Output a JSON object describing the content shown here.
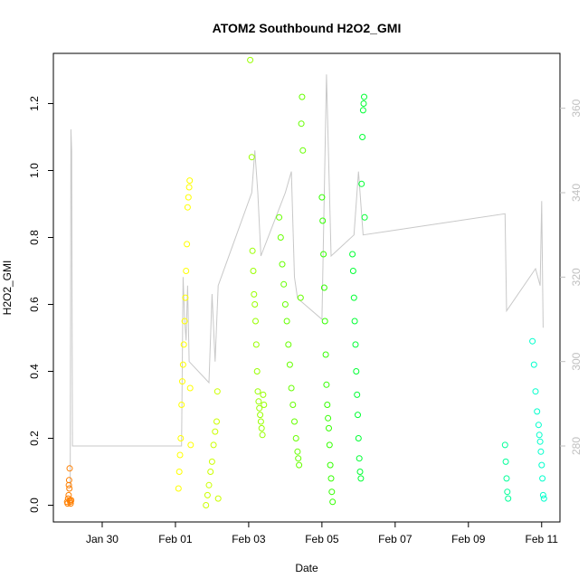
{
  "chart_data": {
    "type": "scatter",
    "title": "ATOM2 Southbound H2O2_GMI",
    "xlabel": "Date",
    "ylabel": "H2O2_GMI",
    "xlim": [
      "2017-01-28T16:00",
      "2017-02-11T12:00"
    ],
    "ylim": [
      -0.05,
      1.35
    ],
    "y2lim": [
      262,
      373
    ],
    "x_ticks": [
      {
        "date": "2017-01-30",
        "label": "Jan 30"
      },
      {
        "date": "2017-02-01",
        "label": "Feb 01"
      },
      {
        "date": "2017-02-03",
        "label": "Feb 03"
      },
      {
        "date": "2017-02-05",
        "label": "Feb 05"
      },
      {
        "date": "2017-02-07",
        "label": "Feb 07"
      },
      {
        "date": "2017-02-09",
        "label": "Feb 09"
      },
      {
        "date": "2017-02-11",
        "label": "Feb 11"
      }
    ],
    "y_ticks": [
      0.0,
      0.2,
      0.4,
      0.6,
      0.8,
      1.0,
      1.2
    ],
    "y2_ticks": [
      280,
      300,
      320,
      340,
      360
    ],
    "grid": false,
    "legend": "none",
    "point_style": "open-circle",
    "series": [
      {
        "color": "#ff7f00",
        "points": [
          {
            "x": "2017-01-29T01:00",
            "y": 0.01
          },
          {
            "x": "2017-01-29T01:20",
            "y": 0.005
          },
          {
            "x": "2017-01-29T01:40",
            "y": 0.02
          },
          {
            "x": "2017-01-29T02:00",
            "y": 0.03
          },
          {
            "x": "2017-01-29T02:10",
            "y": 0.06
          },
          {
            "x": "2017-01-29T02:20",
            "y": 0.075
          },
          {
            "x": "2017-01-29T02:30",
            "y": 0.05
          },
          {
            "x": "2017-01-29T02:40",
            "y": 0.11
          },
          {
            "x": "2017-01-29T02:50",
            "y": 0.015
          },
          {
            "x": "2017-01-29T03:00",
            "y": 0.01
          },
          {
            "x": "2017-01-29T03:20",
            "y": 0.005
          },
          {
            "x": "2017-01-29T03:40",
            "y": 0.015
          }
        ]
      },
      {
        "color": "#ffff00",
        "points": [
          {
            "x": "2017-02-01T02:00",
            "y": 0.05
          },
          {
            "x": "2017-02-01T02:30",
            "y": 0.1
          },
          {
            "x": "2017-02-01T03:00",
            "y": 0.15
          },
          {
            "x": "2017-02-01T03:30",
            "y": 0.2
          },
          {
            "x": "2017-02-01T04:00",
            "y": 0.3
          },
          {
            "x": "2017-02-01T04:30",
            "y": 0.37
          },
          {
            "x": "2017-02-01T05:00",
            "y": 0.42
          },
          {
            "x": "2017-02-01T05:30",
            "y": 0.48
          },
          {
            "x": "2017-02-01T06:00",
            "y": 0.55
          },
          {
            "x": "2017-02-01T06:30",
            "y": 0.62
          },
          {
            "x": "2017-02-01T07:00",
            "y": 0.7
          },
          {
            "x": "2017-02-01T07:30",
            "y": 0.78
          },
          {
            "x": "2017-02-01T08:00",
            "y": 0.89
          },
          {
            "x": "2017-02-01T08:30",
            "y": 0.92
          },
          {
            "x": "2017-02-01T09:00",
            "y": 0.95
          },
          {
            "x": "2017-02-01T09:20",
            "y": 0.97
          },
          {
            "x": "2017-02-01T09:40",
            "y": 0.35
          },
          {
            "x": "2017-02-01T10:00",
            "y": 0.18
          }
        ]
      },
      {
        "color": "#ccff00",
        "points": [
          {
            "x": "2017-02-01T20:00",
            "y": 0.0
          },
          {
            "x": "2017-02-01T21:00",
            "y": 0.03
          },
          {
            "x": "2017-02-01T22:00",
            "y": 0.06
          },
          {
            "x": "2017-02-01T23:00",
            "y": 0.1
          },
          {
            "x": "2017-02-02T00:00",
            "y": 0.13
          },
          {
            "x": "2017-02-02T01:00",
            "y": 0.18
          },
          {
            "x": "2017-02-02T02:00",
            "y": 0.22
          },
          {
            "x": "2017-02-02T03:00",
            "y": 0.25
          },
          {
            "x": "2017-02-02T03:30",
            "y": 0.34
          },
          {
            "x": "2017-02-02T04:00",
            "y": 0.02
          }
        ]
      },
      {
        "color": "#99ff00",
        "points": [
          {
            "x": "2017-02-03T01:00",
            "y": 1.33
          },
          {
            "x": "2017-02-03T02:00",
            "y": 1.04
          },
          {
            "x": "2017-02-03T02:30",
            "y": 0.76
          },
          {
            "x": "2017-02-03T03:00",
            "y": 0.7
          },
          {
            "x": "2017-02-03T03:30",
            "y": 0.63
          },
          {
            "x": "2017-02-03T04:00",
            "y": 0.6
          },
          {
            "x": "2017-02-03T04:30",
            "y": 0.55
          },
          {
            "x": "2017-02-03T05:00",
            "y": 0.48
          },
          {
            "x": "2017-02-03T05:30",
            "y": 0.4
          },
          {
            "x": "2017-02-03T06:00",
            "y": 0.34
          },
          {
            "x": "2017-02-03T06:30",
            "y": 0.31
          },
          {
            "x": "2017-02-03T07:00",
            "y": 0.29
          },
          {
            "x": "2017-02-03T07:30",
            "y": 0.27
          },
          {
            "x": "2017-02-03T08:00",
            "y": 0.25
          },
          {
            "x": "2017-02-03T08:30",
            "y": 0.23
          },
          {
            "x": "2017-02-03T09:00",
            "y": 0.21
          },
          {
            "x": "2017-02-03T09:30",
            "y": 0.33
          },
          {
            "x": "2017-02-03T10:00",
            "y": 0.3
          }
        ]
      },
      {
        "color": "#66ff00",
        "points": [
          {
            "x": "2017-02-03T20:00",
            "y": 0.86
          },
          {
            "x": "2017-02-03T21:00",
            "y": 0.8
          },
          {
            "x": "2017-02-03T22:00",
            "y": 0.72
          },
          {
            "x": "2017-02-03T23:00",
            "y": 0.66
          },
          {
            "x": "2017-02-04T00:00",
            "y": 0.6
          },
          {
            "x": "2017-02-04T01:00",
            "y": 0.55
          },
          {
            "x": "2017-02-04T02:00",
            "y": 0.48
          },
          {
            "x": "2017-02-04T03:00",
            "y": 0.42
          },
          {
            "x": "2017-02-04T04:00",
            "y": 0.35
          },
          {
            "x": "2017-02-04T05:00",
            "y": 0.3
          },
          {
            "x": "2017-02-04T06:00",
            "y": 0.25
          },
          {
            "x": "2017-02-04T07:00",
            "y": 0.2
          },
          {
            "x": "2017-02-04T08:00",
            "y": 0.16
          },
          {
            "x": "2017-02-04T08:30",
            "y": 0.14
          },
          {
            "x": "2017-02-04T09:00",
            "y": 0.12
          },
          {
            "x": "2017-02-04T10:00",
            "y": 0.62
          },
          {
            "x": "2017-02-04T10:30",
            "y": 1.14
          },
          {
            "x": "2017-02-04T11:00",
            "y": 1.22
          },
          {
            "x": "2017-02-04T11:30",
            "y": 1.06
          }
        ]
      },
      {
        "color": "#33ff00",
        "points": [
          {
            "x": "2017-02-05T00:00",
            "y": 0.92
          },
          {
            "x": "2017-02-05T00:30",
            "y": 0.85
          },
          {
            "x": "2017-02-05T01:00",
            "y": 0.75
          },
          {
            "x": "2017-02-05T01:30",
            "y": 0.65
          },
          {
            "x": "2017-02-05T02:00",
            "y": 0.55
          },
          {
            "x": "2017-02-05T02:30",
            "y": 0.45
          },
          {
            "x": "2017-02-05T03:00",
            "y": 0.36
          },
          {
            "x": "2017-02-05T03:30",
            "y": 0.3
          },
          {
            "x": "2017-02-05T04:00",
            "y": 0.26
          },
          {
            "x": "2017-02-05T04:30",
            "y": 0.23
          },
          {
            "x": "2017-02-05T05:00",
            "y": 0.18
          },
          {
            "x": "2017-02-05T05:30",
            "y": 0.12
          },
          {
            "x": "2017-02-05T06:00",
            "y": 0.08
          },
          {
            "x": "2017-02-05T06:30",
            "y": 0.04
          },
          {
            "x": "2017-02-05T07:00",
            "y": 0.01
          }
        ]
      },
      {
        "color": "#00ff33",
        "points": [
          {
            "x": "2017-02-05T20:00",
            "y": 0.75
          },
          {
            "x": "2017-02-05T20:30",
            "y": 0.7
          },
          {
            "x": "2017-02-05T21:00",
            "y": 0.62
          },
          {
            "x": "2017-02-05T21:30",
            "y": 0.55
          },
          {
            "x": "2017-02-05T22:00",
            "y": 0.48
          },
          {
            "x": "2017-02-05T22:30",
            "y": 0.4
          },
          {
            "x": "2017-02-05T23:00",
            "y": 0.33
          },
          {
            "x": "2017-02-05T23:30",
            "y": 0.27
          },
          {
            "x": "2017-02-06T00:00",
            "y": 0.2
          },
          {
            "x": "2017-02-06T00:30",
            "y": 0.14
          },
          {
            "x": "2017-02-06T01:00",
            "y": 0.1
          },
          {
            "x": "2017-02-06T01:30",
            "y": 0.08
          },
          {
            "x": "2017-02-06T02:00",
            "y": 0.96
          },
          {
            "x": "2017-02-06T02:30",
            "y": 1.1
          },
          {
            "x": "2017-02-06T03:00",
            "y": 1.18
          },
          {
            "x": "2017-02-06T03:20",
            "y": 1.2
          },
          {
            "x": "2017-02-06T03:40",
            "y": 1.22
          },
          {
            "x": "2017-02-06T04:00",
            "y": 0.86
          }
        ]
      },
      {
        "color": "#00ff99",
        "points": [
          {
            "x": "2017-02-10T00:00",
            "y": 0.18
          },
          {
            "x": "2017-02-10T00:30",
            "y": 0.13
          },
          {
            "x": "2017-02-10T01:00",
            "y": 0.08
          },
          {
            "x": "2017-02-10T01:30",
            "y": 0.04
          },
          {
            "x": "2017-02-10T02:00",
            "y": 0.02
          }
        ]
      },
      {
        "color": "#00ffcc",
        "points": [
          {
            "x": "2017-02-10T18:00",
            "y": 0.49
          },
          {
            "x": "2017-02-10T19:00",
            "y": 0.42
          },
          {
            "x": "2017-02-10T20:00",
            "y": 0.34
          },
          {
            "x": "2017-02-10T21:00",
            "y": 0.28
          },
          {
            "x": "2017-02-10T22:00",
            "y": 0.24
          },
          {
            "x": "2017-02-10T22:30",
            "y": 0.21
          },
          {
            "x": "2017-02-10T23:00",
            "y": 0.19
          },
          {
            "x": "2017-02-10T23:30",
            "y": 0.16
          },
          {
            "x": "2017-02-11T00:00",
            "y": 0.12
          },
          {
            "x": "2017-02-11T00:30",
            "y": 0.08
          },
          {
            "x": "2017-02-11T01:00",
            "y": 0.03
          },
          {
            "x": "2017-02-11T01:30",
            "y": 0.02
          }
        ]
      }
    ],
    "secondary_line": {
      "axis": "right",
      "color": "#c8c8c8",
      "points": [
        {
          "x": "2017-01-29T03:00",
          "y": 270
        },
        {
          "x": "2017-01-29T03:30",
          "y": 355
        },
        {
          "x": "2017-01-29T04:00",
          "y": 350
        },
        {
          "x": "2017-01-29T04:30",
          "y": 280
        },
        {
          "x": "2017-02-01T04:00",
          "y": 280
        },
        {
          "x": "2017-02-01T05:00",
          "y": 320
        },
        {
          "x": "2017-02-01T06:00",
          "y": 310
        },
        {
          "x": "2017-02-01T07:00",
          "y": 305
        },
        {
          "x": "2017-02-01T08:00",
          "y": 318
        },
        {
          "x": "2017-02-01T09:00",
          "y": 300
        },
        {
          "x": "2017-02-01T22:00",
          "y": 295
        },
        {
          "x": "2017-02-02T00:00",
          "y": 316
        },
        {
          "x": "2017-02-02T02:00",
          "y": 300
        },
        {
          "x": "2017-02-02T04:00",
          "y": 318
        },
        {
          "x": "2017-02-03T02:00",
          "y": 340
        },
        {
          "x": "2017-02-03T04:00",
          "y": 350
        },
        {
          "x": "2017-02-03T06:00",
          "y": 340
        },
        {
          "x": "2017-02-03T08:00",
          "y": 325
        },
        {
          "x": "2017-02-04T00:00",
          "y": 340
        },
        {
          "x": "2017-02-04T04:00",
          "y": 345
        },
        {
          "x": "2017-02-04T06:00",
          "y": 320
        },
        {
          "x": "2017-02-04T08:00",
          "y": 315
        },
        {
          "x": "2017-02-05T00:00",
          "y": 310
        },
        {
          "x": "2017-02-05T03:00",
          "y": 368
        },
        {
          "x": "2017-02-05T06:00",
          "y": 325
        },
        {
          "x": "2017-02-05T21:00",
          "y": 330
        },
        {
          "x": "2017-02-06T00:00",
          "y": 345
        },
        {
          "x": "2017-02-06T03:00",
          "y": 330
        },
        {
          "x": "2017-02-10T00:00",
          "y": 335
        },
        {
          "x": "2017-02-10T01:00",
          "y": 312
        },
        {
          "x": "2017-02-10T20:00",
          "y": 322
        },
        {
          "x": "2017-02-10T23:00",
          "y": 318
        },
        {
          "x": "2017-02-11T00:00",
          "y": 338
        },
        {
          "x": "2017-02-11T01:00",
          "y": 308
        }
      ]
    }
  }
}
